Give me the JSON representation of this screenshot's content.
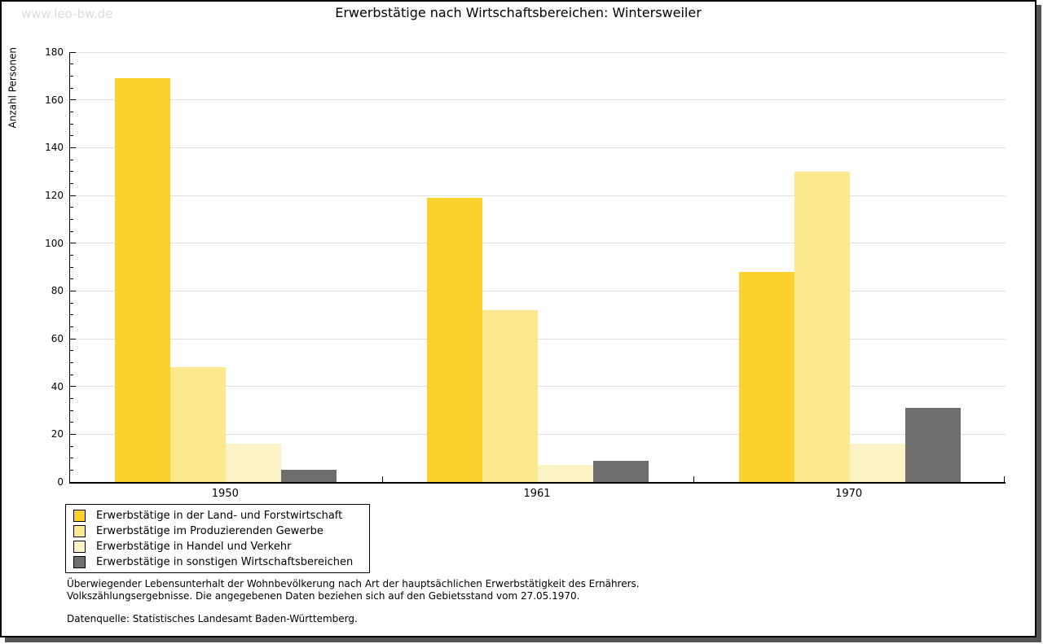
{
  "watermark": "www.leo-bw.de",
  "chart_data": {
    "type": "bar",
    "title": "Erwerbstätige nach Wirtschaftsbereichen: Wintersweiler",
    "ylabel": "Anzahl Personen",
    "xlabel": "",
    "categories": [
      "1950",
      "1961",
      "1970"
    ],
    "series": [
      {
        "name": "Erwerbstätige in der Land- und Forstwirtschaft",
        "color": "#FBD22D",
        "values": [
          169,
          119,
          88
        ]
      },
      {
        "name": "Erwerbstätige im Produzierenden Gewerbe",
        "color": "#FCE98D",
        "values": [
          48,
          72,
          130
        ]
      },
      {
        "name": "Erwerbstätige in Handel und Verkehr",
        "color": "#FBF2C6",
        "values": [
          16,
          7,
          16
        ]
      },
      {
        "name": "Erwerbstätige in sonstigen Wirtschaftsbereichen",
        "color": "#6E6E6E",
        "values": [
          5,
          9,
          31
        ]
      }
    ],
    "ylim": [
      0,
      180
    ],
    "ytick_step": 20,
    "yminor_step": 5,
    "grid": "horizontal",
    "gridline_color": "#E0E0E0",
    "legend_position": "bottom-left"
  },
  "footnotes": {
    "line1": "Überwiegender Lebensunterhalt der Wohnbevölkerung nach Art der hauptsächlichen Erwerbstätigkeit des Ernährers.",
    "line2": "Volkszählungsergebnisse. Die angegebenen Daten beziehen sich auf den Gebietsstand vom 27.05.1970.",
    "source": "Datenquelle: Statistisches Landesamt Baden-Württemberg."
  }
}
